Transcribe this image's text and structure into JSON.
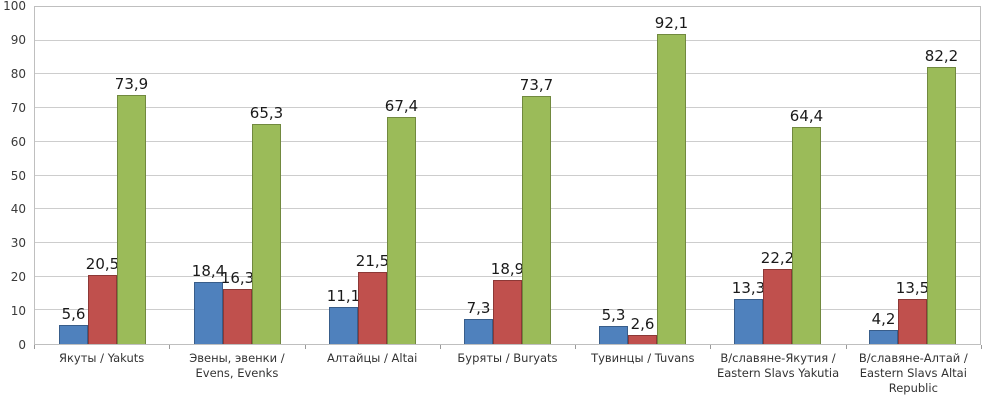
{
  "chart_data": {
    "type": "bar",
    "title": "",
    "xlabel": "",
    "ylabel": "",
    "ylim": [
      0,
      100
    ],
    "ytick_step": 10,
    "grid": true,
    "legend": "none",
    "decimal_separator": ",",
    "categories": [
      "Якуты / Yakuts",
      "Эвены, эвенки / Evens, Evenks",
      "Алтайцы / Altai",
      "Буряты / Buryats",
      "Тувинцы / Tuvans",
      "В/славяне-Якутия / Eastern Slavs Yakutia",
      "В/славяне-Алтай / Eastern Slavs Altai Republic"
    ],
    "series": [
      {
        "name": "series-blue",
        "color": "#4f81bd",
        "border_color": "#385d8a",
        "values": [
          5.6,
          18.4,
          11.1,
          7.3,
          5.3,
          13.3,
          4.2
        ]
      },
      {
        "name": "series-red",
        "color": "#c0504d",
        "border_color": "#8c3836",
        "values": [
          20.5,
          16.3,
          21.5,
          18.9,
          2.6,
          22.2,
          13.5
        ]
      },
      {
        "name": "series-green",
        "color": "#9bbb59",
        "border_color": "#71893f",
        "values": [
          73.9,
          65.3,
          67.4,
          73.7,
          92.1,
          64.4,
          82.2
        ]
      }
    ]
  }
}
